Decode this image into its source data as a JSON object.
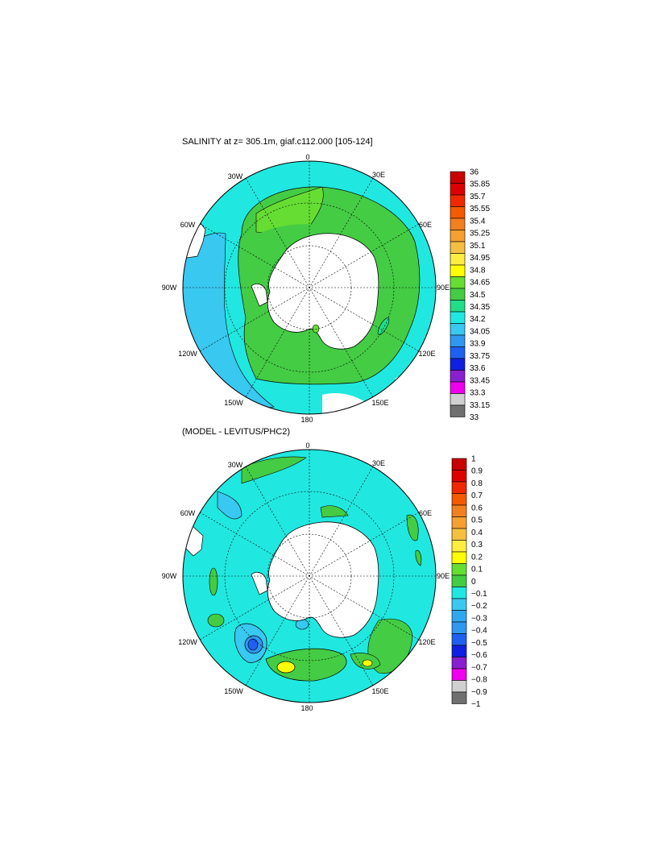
{
  "top": {
    "title": "SALINITY at z= 305.1m, giaf.c112.000 [105-124]",
    "lon_labels": {
      "n": "0",
      "ne": "30E",
      "e1": "60E",
      "e": "90E",
      "se1": "120E",
      "se": "150E",
      "s": "180",
      "sw": "150W",
      "sw1": "120W",
      "w": "90W",
      "nw1": "60W",
      "nw": "30W"
    },
    "colorbar": {
      "labels": [
        "36",
        "35.85",
        "35.7",
        "35.55",
        "35.4",
        "35.25",
        "35.1",
        "34.95",
        "34.8",
        "34.65",
        "34.5",
        "34.35",
        "34.2",
        "34.05",
        "33.9",
        "33.75",
        "33.6",
        "33.45",
        "33.3",
        "33.15",
        "33"
      ],
      "colors": [
        "#c80000",
        "#dd0000",
        "#f02800",
        "#f45a00",
        "#f08020",
        "#f5a030",
        "#f5c040",
        "#ffee40",
        "#ffff00",
        "#66dd33",
        "#44cc44",
        "#22dd88",
        "#20e8e0",
        "#38c8f0",
        "#3098f0",
        "#2060f0",
        "#1020e0",
        "#8820d0",
        "#ee00ee",
        "#d0d0d0",
        "#707070"
      ]
    }
  },
  "bottom": {
    "title": "(MODEL - LEVITUS/PHC2)",
    "lon_labels": {
      "n": "0",
      "ne": "30E",
      "e1": "60E",
      "e": "90E",
      "se1": "120E",
      "se": "150E",
      "s": "180",
      "sw": "150W",
      "sw1": "120W",
      "w": "90W",
      "nw1": "60W",
      "nw": "30W"
    },
    "colorbar": {
      "labels": [
        "1",
        "0.9",
        "0.8",
        "0.7",
        "0.6",
        "0.5",
        "0.4",
        "0.3",
        "0.2",
        "0.1",
        "0",
        "−0.1",
        "−0.2",
        "−0.3",
        "−0.4",
        "−0.5",
        "−0.6",
        "−0.7",
        "−0.8",
        "−0.9",
        "−1"
      ],
      "colors": [
        "#c80000",
        "#dd0000",
        "#f02800",
        "#f45a00",
        "#f08020",
        "#f5a030",
        "#f5c040",
        "#ffee40",
        "#ffff00",
        "#66dd33",
        "#44cc44",
        "#20e8e0",
        "#38c8f0",
        "#30a8f0",
        "#3098f0",
        "#2060f0",
        "#1020e0",
        "#8820d0",
        "#ee00ee",
        "#d0d0d0",
        "#707070"
      ]
    }
  }
}
